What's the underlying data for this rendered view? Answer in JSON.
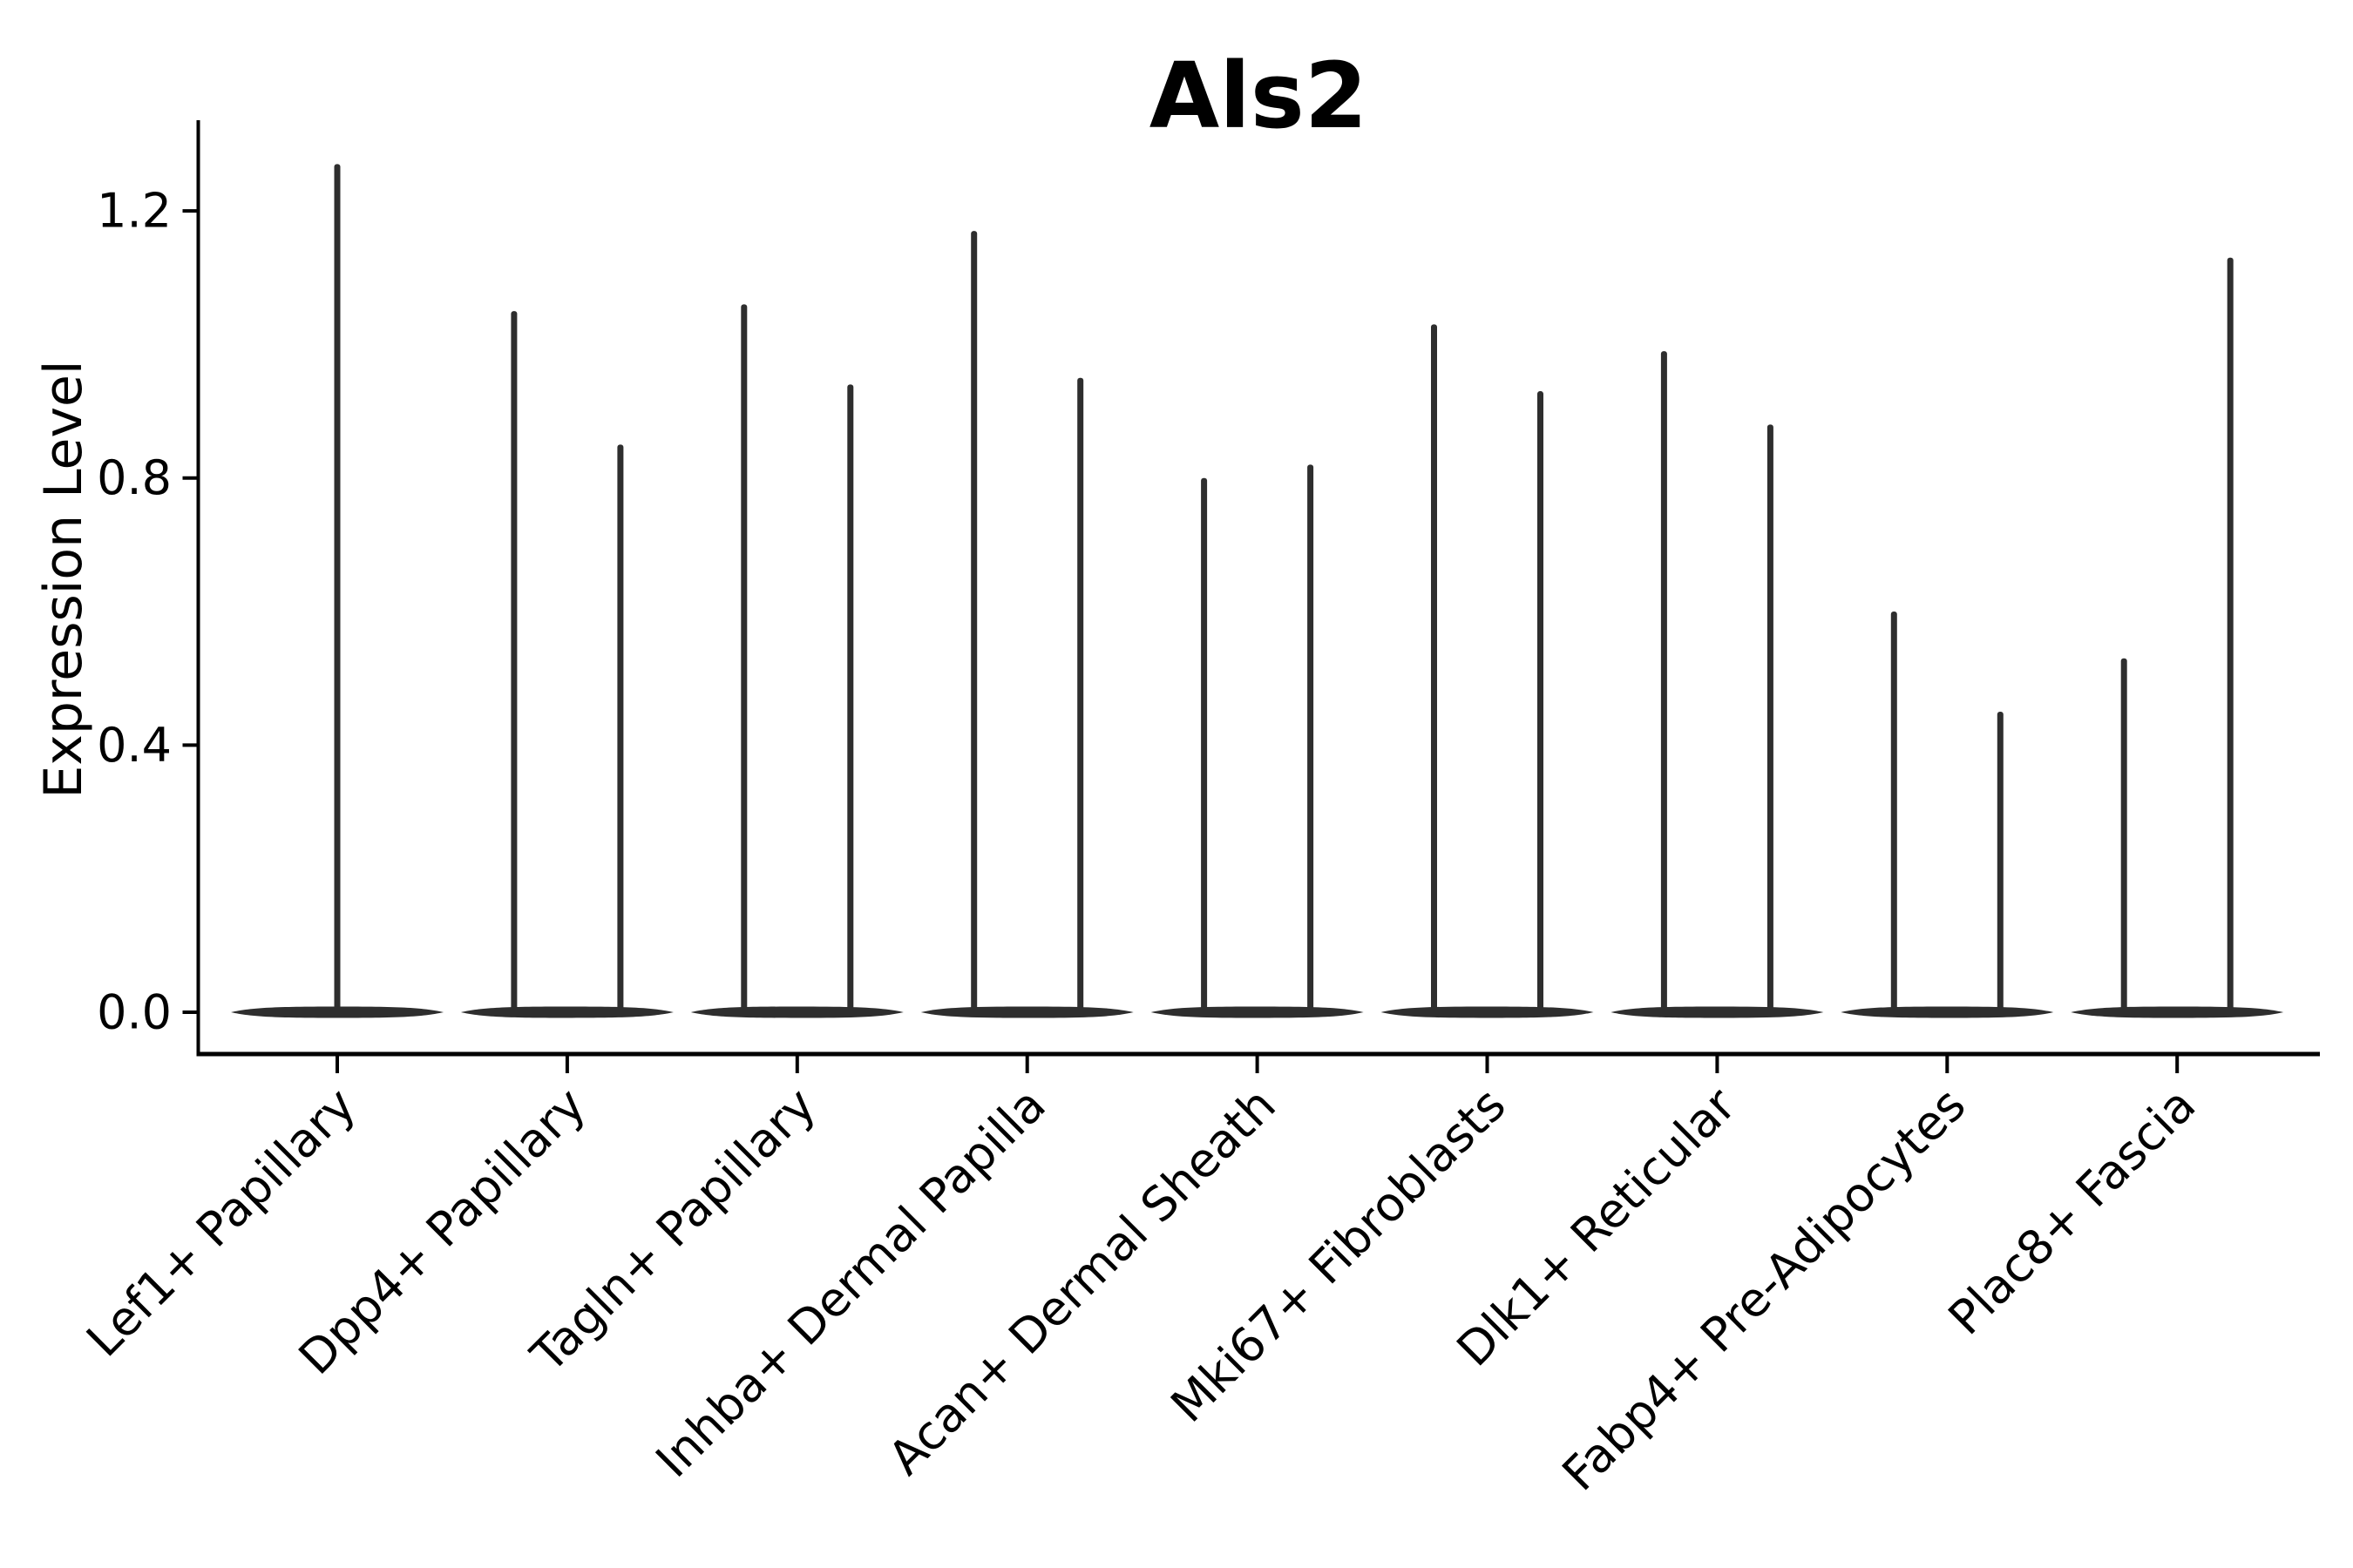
{
  "chart_data": {
    "type": "violin",
    "title": "Als2",
    "ylabel": "Expression Level",
    "xlabel": "",
    "grid": false,
    "legend": false,
    "background_color": "#ffffff",
    "violin_color": "#2e2e2e",
    "axis_color": "#000000",
    "ytick_labels": [
      "0.0",
      "0.4",
      "0.8",
      "1.2"
    ],
    "ytick_values": [
      0.0,
      0.4,
      0.8,
      1.2
    ],
    "ylim": [
      -0.06,
      1.33
    ],
    "categories": [
      "Lef1+ Papillary",
      "Dpp4+ Papillary",
      "Tagln+ Papillary",
      "Inhba+ Dermal Papilla",
      "Acan+ Dermal Sheath",
      "Mki67+ Fibroblasts",
      "Dlk1+ Reticular",
      "Fabp4+ Pre-Adipocytes",
      "Plac8+ Fascia"
    ],
    "series": [
      {
        "category": "Lef1+ Papillary",
        "violin_max": [
          1.27
        ]
      },
      {
        "category": "Dpp4+ Papillary",
        "violin_max": [
          1.05,
          0.85
        ]
      },
      {
        "category": "Tagln+ Papillary",
        "violin_max": [
          1.06,
          0.94
        ]
      },
      {
        "category": "Inhba+ Dermal Papilla",
        "violin_max": [
          1.17,
          0.95
        ]
      },
      {
        "category": "Acan+ Dermal Sheath",
        "violin_max": [
          0.8,
          0.82
        ]
      },
      {
        "category": "Mki67+ Fibroblasts",
        "violin_max": [
          1.03,
          0.93
        ]
      },
      {
        "category": "Dlk1+ Reticular",
        "violin_max": [
          0.99,
          0.88
        ]
      },
      {
        "category": "Fabp4+ Pre-Adipocytes",
        "violin_max": [
          0.6,
          0.45
        ]
      },
      {
        "category": "Plac8+ Fascia",
        "violin_max": [
          0.53,
          1.13
        ]
      }
    ]
  }
}
